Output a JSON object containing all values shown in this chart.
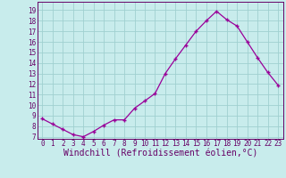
{
  "x": [
    0,
    1,
    2,
    3,
    4,
    5,
    6,
    7,
    8,
    9,
    10,
    11,
    12,
    13,
    14,
    15,
    16,
    17,
    18,
    19,
    20,
    21,
    22,
    23
  ],
  "y": [
    8.7,
    8.2,
    7.7,
    7.2,
    7.0,
    7.5,
    8.1,
    8.6,
    8.6,
    9.7,
    10.4,
    11.1,
    13.0,
    14.4,
    15.7,
    17.0,
    18.0,
    18.9,
    18.1,
    17.5,
    16.0,
    14.5,
    13.1,
    11.9
  ],
  "line_color": "#990099",
  "marker": "+",
  "marker_size": 3,
  "linewidth": 0.9,
  "bg_color": "#c8ecec",
  "grid_color": "#a0d0d0",
  "xlabel": "Windchill (Refroidissement éolien,°C)",
  "xlabel_color": "#660066",
  "ylabel_ticks": [
    7,
    8,
    9,
    10,
    11,
    12,
    13,
    14,
    15,
    16,
    17,
    18,
    19
  ],
  "xlim": [
    -0.5,
    23.5
  ],
  "ylim": [
    6.8,
    19.8
  ],
  "xtick_labels": [
    "0",
    "1",
    "2",
    "3",
    "4",
    "5",
    "6",
    "7",
    "8",
    "9",
    "10",
    "11",
    "12",
    "13",
    "14",
    "15",
    "16",
    "17",
    "18",
    "19",
    "20",
    "21",
    "22",
    "23"
  ],
  "tick_color": "#660066",
  "tick_fontsize": 5.5,
  "xlabel_fontsize": 7,
  "markeredgewidth": 1.0
}
